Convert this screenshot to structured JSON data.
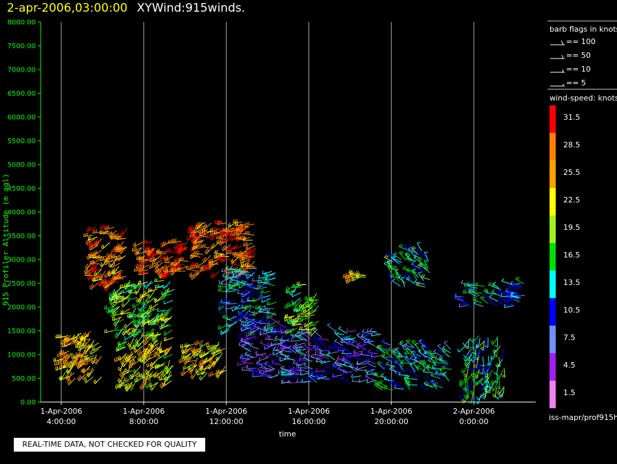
{
  "header": {
    "date": "2-apr-2006,03:00:00",
    "product": "XYWind:915winds."
  },
  "chart_data": {
    "type": "scatter",
    "title": "XYWind:915winds.",
    "xlabel": "time",
    "ylabel": "915 Profiler Altitude (m agl)",
    "ylim": [
      0,
      8000
    ],
    "xlim": [
      "2006-04-01 03:00",
      "2006-04-02 03:00"
    ],
    "y_ticks": [
      "0.00",
      "500.00",
      "1000.00",
      "1500.00",
      "2000.00",
      "2500.00",
      "3000.00",
      "3500.00",
      "4000.00",
      "4500.00",
      "5000.00",
      "5500.00",
      "6000.00",
      "6500.00",
      "7000.00",
      "7500.00",
      "8000.00"
    ],
    "x_ticks": [
      {
        "date": "1-Apr-2006",
        "time": "4:00:00",
        "hour": 4
      },
      {
        "date": "1-Apr-2006",
        "time": "8:00:00",
        "hour": 8
      },
      {
        "date": "1-Apr-2006",
        "time": "12:00:00",
        "hour": 12
      },
      {
        "date": "1-Apr-2006",
        "time": "16:00:00",
        "hour": 16
      },
      {
        "date": "1-Apr-2006",
        "time": "20:00:00",
        "hour": 20
      },
      {
        "date": "2-Apr-2006",
        "time": "0:00:00",
        "hour": 24
      }
    ],
    "grid": "vertical",
    "wind_clusters": [
      {
        "t0": 4.0,
        "t1": 6.0,
        "h0": 500,
        "h1": 1500,
        "spd": 24,
        "dir": 230
      },
      {
        "t0": 5.5,
        "t1": 7.2,
        "h0": 2500,
        "h1": 3700,
        "spd": 27,
        "dir": 240
      },
      {
        "t0": 7.0,
        "t1": 9.5,
        "h0": 350,
        "h1": 1400,
        "spd": 22,
        "dir": 225
      },
      {
        "t0": 7.8,
        "t1": 10.2,
        "h0": 2700,
        "h1": 3400,
        "spd": 29,
        "dir": 245
      },
      {
        "t0": 6.5,
        "t1": 9.5,
        "h0": 1400,
        "h1": 2600,
        "spd": 18,
        "dir": 235
      },
      {
        "t0": 10.0,
        "t1": 12.0,
        "h0": 600,
        "h1": 1300,
        "spd": 24,
        "dir": 230
      },
      {
        "t0": 10.5,
        "t1": 13.5,
        "h0": 2700,
        "h1": 3800,
        "spd": 27,
        "dir": 250
      },
      {
        "t0": 12.0,
        "t1": 14.5,
        "h0": 1500,
        "h1": 2800,
        "spd": 12,
        "dir": 260
      },
      {
        "t0": 13.0,
        "t1": 15.2,
        "h0": 500,
        "h1": 1700,
        "spd": 8,
        "dir": 270
      },
      {
        "t0": 15.2,
        "t1": 16.5,
        "h0": 1500,
        "h1": 2500,
        "spd": 18,
        "dir": 240
      },
      {
        "t0": 15.0,
        "t1": 19.5,
        "h0": 400,
        "h1": 1500,
        "spd": 9,
        "dir": 280
      },
      {
        "t0": 19.5,
        "t1": 23.0,
        "h0": 250,
        "h1": 1200,
        "spd": 13,
        "dir": 300
      },
      {
        "t0": 20.0,
        "t1": 22.0,
        "h0": 2400,
        "h1": 3200,
        "spd": 14,
        "dir": 310
      },
      {
        "t0": 23.6,
        "t1": 25.5,
        "h0": 150,
        "h1": 1400,
        "spd": 15,
        "dir": 200
      },
      {
        "t0": 23.5,
        "t1": 26.5,
        "h0": 2000,
        "h1": 2500,
        "spd": 12,
        "dir": 280
      },
      {
        "t0": 18.0,
        "t1": 18.8,
        "h0": 2600,
        "h1": 2700,
        "spd": 23,
        "dir": 260
      }
    ]
  },
  "legend": {
    "flags_title": "barb flags in knots",
    "flags": [
      "== 100",
      "== 50",
      "== 10",
      "== 5"
    ],
    "speed_title": "wind-speed: knots",
    "scale": [
      {
        "label": "31.5",
        "color": "#ff0000"
      },
      {
        "label": "28.5",
        "color": "#ff7f00"
      },
      {
        "label": "25.5",
        "color": "#ff9f00"
      },
      {
        "label": "22.5",
        "color": "#ffff00"
      },
      {
        "label": "19.5",
        "color": "#a0f020"
      },
      {
        "label": "16.5",
        "color": "#00e000"
      },
      {
        "label": "13.5",
        "color": "#00ffff"
      },
      {
        "label": "10.5",
        "color": "#0000ff"
      },
      {
        "label": "7.5",
        "color": "#6f8fff"
      },
      {
        "label": "4.5",
        "color": "#a020f0"
      },
      {
        "label": "1.5",
        "color": "#f080f0"
      }
    ],
    "station": "iss-mapr/prof915h"
  },
  "quality_note": "REAL-TIME DATA, NOT CHECKED FOR QUALITY",
  "colors": {
    "axis": "#00ff00",
    "grid": "#aaaaaa",
    "background": "#000000"
  }
}
